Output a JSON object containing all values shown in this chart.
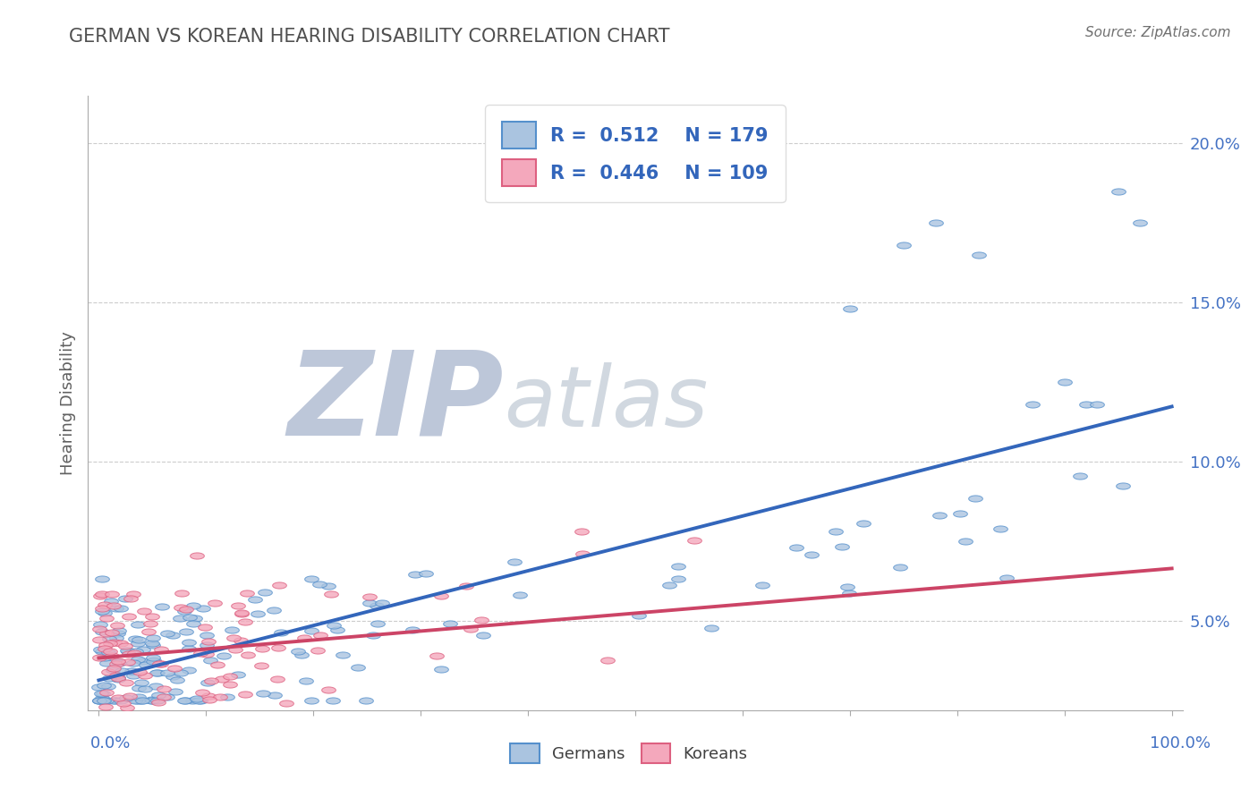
{
  "title": "GERMAN VS KOREAN HEARING DISABILITY CORRELATION CHART",
  "source": "Source: ZipAtlas.com",
  "ylabel": "Hearing Disability",
  "german_R": 0.512,
  "german_N": 179,
  "korean_R": 0.446,
  "korean_N": 109,
  "german_color": "#aac4e0",
  "german_edge_color": "#5590cc",
  "german_line_color": "#3366bb",
  "korean_color": "#f4a8bc",
  "korean_edge_color": "#dd6080",
  "korean_line_color": "#cc4466",
  "legend_R_color": "#3366bb",
  "background_color": "#ffffff",
  "grid_color": "#cccccc",
  "title_color": "#505050",
  "axis_label_color": "#4472c4",
  "watermark_zip_color": "#8899bb",
  "watermark_atlas_color": "#99aabb",
  "ytick_vals": [
    0.05,
    0.1,
    0.15,
    0.2
  ],
  "ytick_labels": [
    "5.0%",
    "10.0%",
    "15.0%",
    "20.0%"
  ],
  "ylim": [
    0.022,
    0.215
  ],
  "xlim": [
    0.0,
    1.0
  ]
}
